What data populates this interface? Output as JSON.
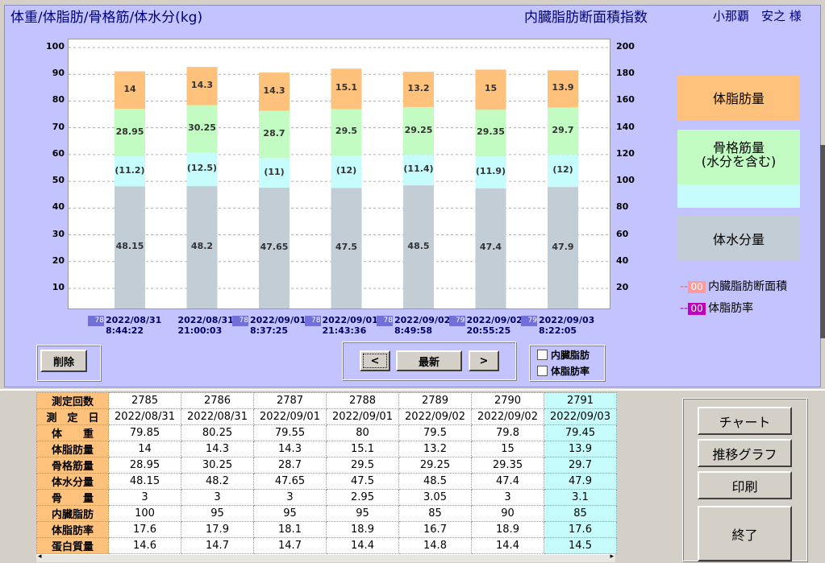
{
  "header": {
    "left_title": "体重/体脂肪/骨格筋/体水分(kg)",
    "mid_title": "内臓脂肪断面積指数",
    "user": "小那覇　安之 様"
  },
  "chart_data": {
    "type": "bar",
    "stacked": true,
    "left_axis": {
      "ticks": [
        "100",
        "90",
        "80",
        "70",
        "60",
        "50",
        "40",
        "30",
        "20",
        "10"
      ],
      "range": [
        0,
        100
      ]
    },
    "right_axis": {
      "ticks": [
        "200",
        "180",
        "160",
        "140",
        "120",
        "100",
        "80",
        "60",
        "40",
        "20"
      ],
      "range": [
        0,
        200
      ]
    },
    "categories": [
      {
        "id": "2785",
        "badge": "78",
        "date": "2022/08/31",
        "time": "8:44:22"
      },
      {
        "id": "2786",
        "badge": "",
        "date": "2022/08/31",
        "time": "21:00:03"
      },
      {
        "id": "2787",
        "badge": "78",
        "date": "2022/09/01",
        "time": "8:37:25"
      },
      {
        "id": "2788",
        "badge": "78",
        "date": "2022/09/01",
        "time": "21:43:36"
      },
      {
        "id": "2789",
        "badge": "78",
        "date": "2022/09/02",
        "time": "8:49:58"
      },
      {
        "id": "2790",
        "badge": "79",
        "date": "2022/09/02",
        "time": "20:55:25"
      },
      {
        "id": "2791",
        "badge": "79",
        "date": "2022/09/03",
        "time": "8:22:05"
      }
    ],
    "series": [
      {
        "name": "体水分量",
        "color": "#c3cdd6",
        "values": [
          48.15,
          48.2,
          47.65,
          47.5,
          48.5,
          47.4,
          47.9
        ],
        "labels": [
          "48.15",
          "48.2",
          "47.65",
          "47.5",
          "48.5",
          "47.4",
          "47.9"
        ]
      },
      {
        "name": "骨格筋量(水分を含む) lower",
        "color": "#c6fcfc",
        "values": [
          11.2,
          12.5,
          11,
          12,
          11.4,
          11.9,
          12
        ],
        "labels": [
          "(11.2)",
          "(12.5)",
          "(11)",
          "(12)",
          "(11.4)",
          "(11.9)",
          "(12)"
        ]
      },
      {
        "name": "骨格筋量",
        "color": "#c2fcc2",
        "values": [
          28.95,
          30.25,
          28.7,
          29.5,
          29.25,
          29.35,
          29.7
        ],
        "labels": [
          "28.95",
          "30.25",
          "28.7",
          "29.5",
          "29.25",
          "29.35",
          "29.7"
        ]
      },
      {
        "name": "体脂肪量",
        "color": "#fec27c",
        "values": [
          14,
          14.3,
          14.3,
          15.1,
          13.2,
          15,
          13.9
        ],
        "labels": [
          "14",
          "14.3",
          "14.3",
          "15.1",
          "13.2",
          "15",
          "13.9"
        ]
      }
    ]
  },
  "legend": {
    "fat": "体脂肪量",
    "muscle_line1": "骨格筋量",
    "muscle_line2": "(水分を含む)",
    "water": "体水分量",
    "visceral_box": "00",
    "visceral_label": "内臓脂肪断面積",
    "fatrate_box": "00",
    "fatrate_label": "体脂肪率"
  },
  "colors": {
    "fat": "#fec27c",
    "muscle": "#c2fcc2",
    "muscle_water": "#c6fcfc",
    "water": "#c3cdd6",
    "visceral": "#ff9a9a",
    "fatrate": "#c000c0",
    "panel": "#c3c3ff"
  },
  "controls": {
    "delete": "削除",
    "prev": "<",
    "latest": "最新",
    "next": ">",
    "chk_visceral": "内臓脂肪",
    "chk_fatrate": "体脂肪率"
  },
  "table": {
    "headers": [
      "測定回数",
      "測　定　日",
      "体　　重",
      "体脂肪量",
      "骨格筋量",
      "体水分量",
      "骨　　量",
      "内臓脂肪",
      "体脂肪率",
      "蛋白質量"
    ],
    "rows": [
      [
        "2785",
        "2786",
        "2787",
        "2788",
        "2789",
        "2790",
        "2791"
      ],
      [
        "2022/08/31",
        "2022/08/31",
        "2022/09/01",
        "2022/09/01",
        "2022/09/02",
        "2022/09/02",
        "2022/09/03"
      ],
      [
        "79.85",
        "80.25",
        "79.55",
        "80",
        "79.5",
        "79.8",
        "79.45"
      ],
      [
        "14",
        "14.3",
        "14.3",
        "15.1",
        "13.2",
        "15",
        "13.9"
      ],
      [
        "28.95",
        "30.25",
        "28.7",
        "29.5",
        "29.25",
        "29.35",
        "29.7"
      ],
      [
        "48.15",
        "48.2",
        "47.65",
        "47.5",
        "48.5",
        "47.4",
        "47.9"
      ],
      [
        "3",
        "3",
        "3",
        "2.95",
        "3.05",
        "3",
        "3.1"
      ],
      [
        "100",
        "95",
        "95",
        "95",
        "85",
        "90",
        "85"
      ],
      [
        "17.6",
        "17.9",
        "18.1",
        "18.9",
        "16.7",
        "18.9",
        "17.6"
      ],
      [
        "14.6",
        "14.7",
        "14.7",
        "14.4",
        "14.8",
        "14.4",
        "14.5"
      ]
    ]
  },
  "side_buttons": {
    "chart": "チャート",
    "trend": "推移グラフ",
    "print": "印刷",
    "exit": "終了"
  }
}
